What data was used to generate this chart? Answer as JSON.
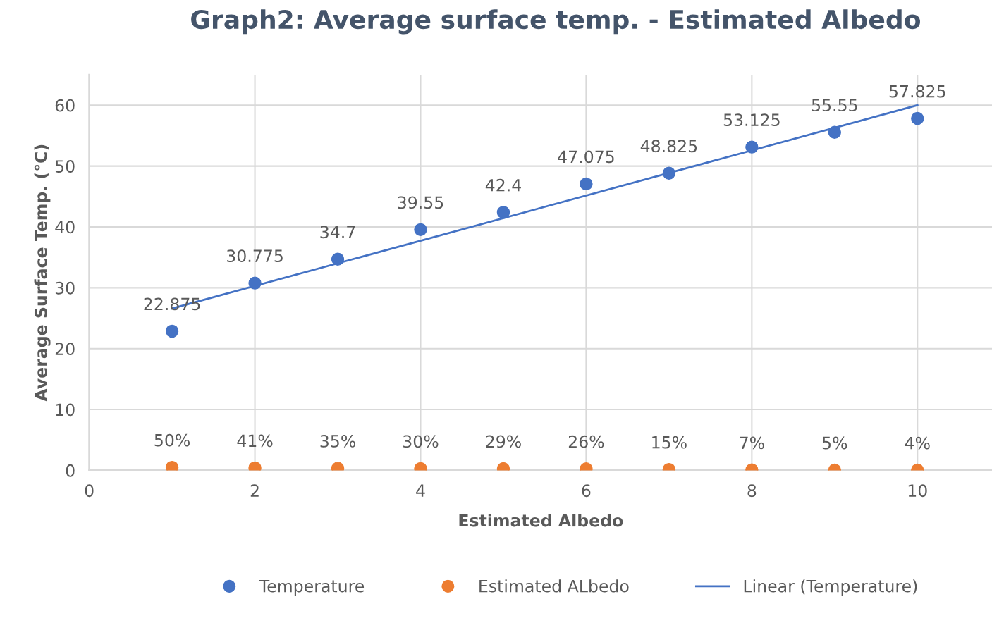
{
  "chart_data": {
    "type": "scatter",
    "title": "Graph2: Average surface temp. - Estimated Albedo",
    "xlabel": "Estimated Albedo",
    "ylabel": "Average Surface Temp. (°C)",
    "x": [
      1,
      2,
      3,
      4,
      5,
      6,
      7,
      8,
      9,
      10
    ],
    "series": [
      {
        "name": "Temperature",
        "marker": "circle",
        "color": "#4472c4",
        "values": [
          22.875,
          30.775,
          34.7,
          39.55,
          42.4,
          47.075,
          48.825,
          53.125,
          55.55,
          57.825
        ],
        "value_labels": [
          "22.875",
          "30.775",
          "34.7",
          "39.55",
          "42.4",
          "47.075",
          "48.825",
          "53.125",
          "55.55",
          "57.825"
        ]
      },
      {
        "name": "Estimated ALbedo",
        "marker": "circle",
        "color": "#ed7d31",
        "values": [
          0.5,
          0.41,
          0.35,
          0.3,
          0.29,
          0.26,
          0.15,
          0.07,
          0.05,
          0.04
        ],
        "value_labels": [
          "50%",
          "41%",
          "35%",
          "30%",
          "29%",
          "26%",
          "15%",
          "7%",
          "5%",
          "4%"
        ]
      },
      {
        "name": "Linear (Temperature)",
        "type": "line",
        "marker": "none",
        "color": "#4472c4",
        "x": [
          1,
          10
        ],
        "values": [
          26.6,
          60.0
        ]
      }
    ],
    "xlim": [
      0,
      10.9
    ],
    "xticks": [
      0,
      2,
      4,
      6,
      8,
      10
    ],
    "ylim": [
      0,
      65
    ],
    "yticks": [
      0,
      10,
      20,
      30,
      40,
      50,
      60
    ],
    "grid": true,
    "legend": "bottom"
  }
}
